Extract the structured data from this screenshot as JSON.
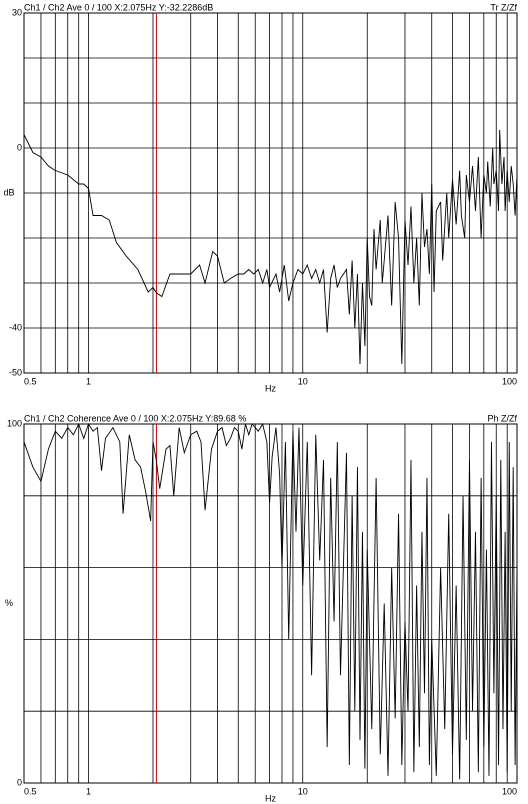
{
  "chart_data": [
    {
      "type": "line",
      "title": "Ch1 / Ch2  Ave 0 / 100  X:2.075Hz  Y:-32.2286dB",
      "title_right": "Tr Z/Zf",
      "x_label": "Hz",
      "y_label": "dB",
      "color": "#000000",
      "cursor_color": "#cc0000",
      "cursor_x": 2.075,
      "log_x": true,
      "xlim": [
        0.5,
        100
      ],
      "xticks": [
        0.5,
        1,
        10,
        100
      ],
      "xgrid": [
        0.6,
        0.7,
        0.8,
        0.9,
        1,
        2,
        3,
        4,
        5,
        6,
        7,
        8,
        9,
        10,
        20,
        30,
        40,
        50,
        60,
        70,
        80,
        90
      ],
      "ylim": [
        -50,
        30
      ],
      "yticks": [
        -50,
        -40,
        0,
        30
      ],
      "ygrid": [
        -40,
        -30,
        -20,
        -10,
        0,
        10,
        20
      ],
      "x": [
        0.5,
        0.55,
        0.6,
        0.65,
        0.7,
        0.8,
        0.9,
        0.95,
        1.0,
        1.05,
        1.15,
        1.25,
        1.35,
        1.5,
        1.7,
        1.9,
        2.0,
        2.075,
        2.2,
        2.4,
        2.6,
        3.0,
        3.3,
        3.5,
        3.8,
        4.0,
        4.3,
        4.6,
        5.0,
        5.3,
        5.6,
        5.9,
        6.2,
        6.5,
        6.8,
        7.0,
        7.5,
        7.8,
        8.2,
        8.6,
        9.0,
        9.5,
        10,
        10.5,
        11,
        11.5,
        12,
        12.5,
        13,
        13.5,
        14,
        14.5,
        15,
        16,
        16.5,
        17,
        17.5,
        18,
        18.5,
        19,
        19.5,
        20,
        20.5,
        21,
        21.5,
        22,
        23,
        23.5,
        24,
        25,
        26,
        27,
        28,
        29,
        30,
        31,
        32,
        33,
        34,
        35,
        36,
        37,
        38,
        39,
        40,
        41,
        42,
        44,
        45,
        47,
        48,
        50,
        52,
        54,
        55,
        57,
        58,
        60,
        62,
        64,
        66,
        68,
        70,
        72,
        73,
        75,
        77,
        78,
        80,
        82,
        83,
        85,
        87,
        88,
        90,
        92,
        94,
        96,
        98,
        100
      ],
      "values": [
        3,
        -1,
        -2,
        -4,
        -5,
        -6,
        -8,
        -8,
        -9,
        -15,
        -15,
        -16,
        -21,
        -24,
        -27,
        -32,
        -31,
        -32.2,
        -33,
        -28,
        -28,
        -28,
        -26,
        -30,
        -23,
        -24,
        -30,
        -29,
        -28,
        -28,
        -27,
        -28,
        -27,
        -30,
        -27,
        -31,
        -28,
        -32,
        -26,
        -34,
        -30,
        -27,
        -28,
        -26,
        -29,
        -27,
        -30,
        -27,
        -41,
        -29,
        -26,
        -31,
        -29,
        -27,
        -37,
        -25,
        -40,
        -28,
        -48,
        -30,
        -44,
        -20,
        -33,
        -35,
        -18,
        -27,
        -16,
        -30,
        -25,
        -15,
        -35,
        -12,
        -20,
        -48,
        -16,
        -26,
        -13,
        -30,
        -20,
        -35,
        -10,
        -22,
        -18,
        -28,
        -8,
        -32,
        -14,
        -12,
        -25,
        -10,
        -20,
        -7,
        -17,
        -5,
        -15,
        -20,
        -6,
        -12,
        -4,
        -14,
        -2,
        -20,
        -6,
        -10,
        -3,
        -13,
        0,
        -8,
        -5,
        -14,
        4,
        -8,
        -2,
        -14,
        -5,
        -12,
        -4,
        -8,
        -15,
        -6
      ]
    },
    {
      "type": "line",
      "title": "Ch1 / Ch2  Coherence Ave 0 / 100  X:2.075Hz  Y:89.68 %",
      "title_right": "Ph Z/Zf",
      "x_label": "Hz",
      "y_label": "%",
      "color": "#000000",
      "cursor_color": "#cc0000",
      "cursor_x": 2.075,
      "log_x": true,
      "xlim": [
        0.5,
        100
      ],
      "xticks": [
        0.5,
        1,
        10,
        100
      ],
      "xgrid": [
        0.6,
        0.7,
        0.8,
        0.9,
        1,
        2,
        3,
        4,
        5,
        6,
        7,
        8,
        9,
        10,
        20,
        30,
        40,
        50,
        60,
        70,
        80,
        90
      ],
      "ylim": [
        0,
        100
      ],
      "yticks": [
        0,
        100
      ],
      "ygrid": [
        20,
        40,
        60,
        80
      ],
      "x": [
        0.5,
        0.55,
        0.6,
        0.65,
        0.7,
        0.75,
        0.8,
        0.85,
        0.9,
        0.95,
        1.0,
        1.05,
        1.1,
        1.15,
        1.2,
        1.3,
        1.4,
        1.45,
        1.55,
        1.65,
        1.75,
        1.85,
        1.95,
        2.0,
        2.075,
        2.15,
        2.3,
        2.4,
        2.5,
        2.65,
        2.8,
        3.0,
        3.2,
        3.35,
        3.5,
        3.75,
        4.0,
        4.2,
        4.4,
        4.6,
        4.8,
        5.0,
        5.2,
        5.4,
        5.6,
        5.8,
        6.0,
        6.2,
        6.5,
        6.8,
        7.0,
        7.2,
        7.5,
        7.8,
        8.0,
        8.3,
        8.6,
        9.0,
        9.3,
        9.6,
        10,
        10.5,
        11,
        11.5,
        12,
        12.5,
        13,
        13.5,
        14,
        14.5,
        15,
        16,
        16.5,
        17,
        17.5,
        18,
        18.5,
        19,
        19.5,
        20,
        21,
        22,
        23,
        24,
        25,
        26,
        27,
        28,
        29,
        30,
        31,
        32,
        33,
        34,
        35,
        36,
        37,
        38,
        39,
        40,
        42,
        44,
        46,
        48,
        50,
        52,
        54,
        56,
        58,
        60,
        62,
        64,
        66,
        68,
        70,
        72,
        74,
        76,
        78,
        80,
        82,
        84,
        86,
        88,
        90,
        92,
        94,
        96,
        98,
        100
      ],
      "values": [
        95,
        88,
        84,
        93,
        98,
        96,
        99,
        97,
        100,
        96,
        100,
        98,
        99,
        87,
        96,
        99,
        95,
        75,
        97,
        90,
        88,
        81,
        73,
        95,
        89.68,
        82,
        93,
        94,
        80,
        99,
        92,
        97,
        98,
        95,
        76,
        93,
        98,
        99,
        94,
        96,
        99,
        98,
        93,
        100,
        97,
        100,
        99,
        98,
        100,
        95,
        78,
        91,
        99,
        86,
        60,
        95,
        40,
        98,
        70,
        99,
        55,
        95,
        30,
        97,
        62,
        90,
        10,
        85,
        45,
        95,
        30,
        92,
        5,
        80,
        20,
        88,
        12,
        70,
        4,
        65,
        15,
        85,
        8,
        50,
        2,
        60,
        18,
        75,
        5,
        45,
        20,
        90,
        3,
        55,
        10,
        70,
        25,
        85,
        5,
        40,
        2,
        60,
        15,
        75,
        8,
        55,
        1,
        80,
        12,
        90,
        20,
        70,
        3,
        85,
        10,
        65,
        2,
        95,
        25,
        80,
        5,
        90,
        15,
        70,
        3,
        95,
        20,
        88,
        5,
        60
      ]
    }
  ]
}
